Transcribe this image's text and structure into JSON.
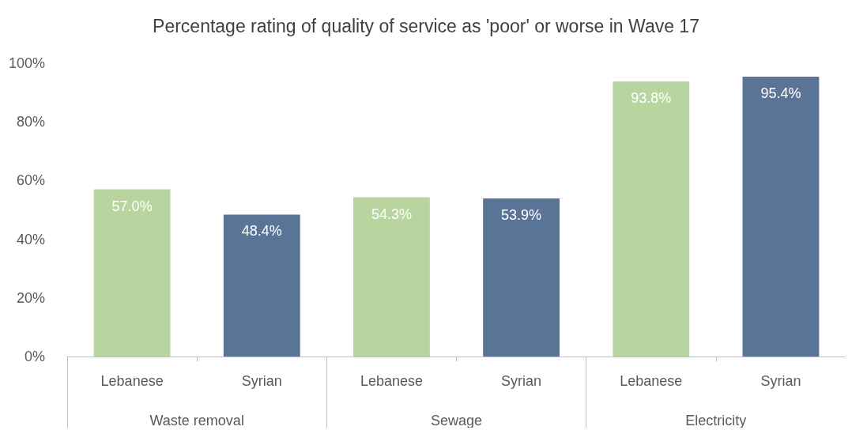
{
  "chart_data": {
    "type": "bar",
    "title": "Percentage rating of quality of service as 'poor' or worse in Wave 17",
    "categories": [
      "Lebanese",
      "Syrian",
      "Lebanese",
      "Syrian",
      "Lebanese",
      "Syrian"
    ],
    "values": [
      57.0,
      48.4,
      54.3,
      53.9,
      93.8,
      95.4
    ],
    "colors": [
      "#b8d5a0",
      "#5a7498",
      "#b8d5a0",
      "#5a7498",
      "#b8d5a0",
      "#5a7498"
    ],
    "value_labels": [
      "57.0%",
      "48.4%",
      "54.3%",
      "53.9%",
      "93.8%",
      "95.4%"
    ],
    "annotations": [
      "Waste removal",
      "Sewage",
      "Electricity"
    ],
    "ylim": [
      0,
      100
    ],
    "yticks": [
      {
        "value": 0,
        "label": "0%"
      },
      {
        "value": 20,
        "label": "20%"
      },
      {
        "value": 40,
        "label": "40%"
      },
      {
        "value": 60,
        "label": "60%"
      },
      {
        "value": 80,
        "label": "80%"
      },
      {
        "value": 100,
        "label": "100%"
      }
    ],
    "grid": false
  }
}
